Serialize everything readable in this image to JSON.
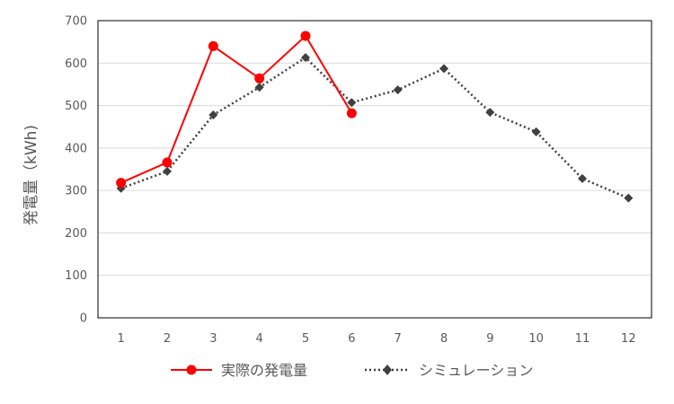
{
  "chart_data": {
    "type": "line",
    "title": "",
    "xlabel": "",
    "ylabel": "発電量（kWh)",
    "categories": [
      "1",
      "2",
      "3",
      "4",
      "5",
      "6",
      "7",
      "8",
      "9",
      "10",
      "11",
      "12"
    ],
    "yticks": [
      "0",
      "100",
      "200",
      "300",
      "400",
      "500",
      "600",
      "700"
    ],
    "ylim": [
      0,
      700
    ],
    "grid": "horizontal",
    "legend_position": "bottom",
    "series": [
      {
        "name": "実際の発電量",
        "color": "#ff0000",
        "line_style": "solid",
        "marker": "circle",
        "values": [
          318,
          366,
          640,
          564,
          664,
          482,
          null,
          null,
          null,
          null,
          null,
          null
        ]
      },
      {
        "name": "シミュレーション",
        "color": "#404040",
        "line_style": "dotted",
        "marker": "diamond",
        "values": [
          305,
          345,
          478,
          543,
          613,
          507,
          537,
          587,
          484,
          438,
          328,
          282
        ]
      }
    ]
  }
}
